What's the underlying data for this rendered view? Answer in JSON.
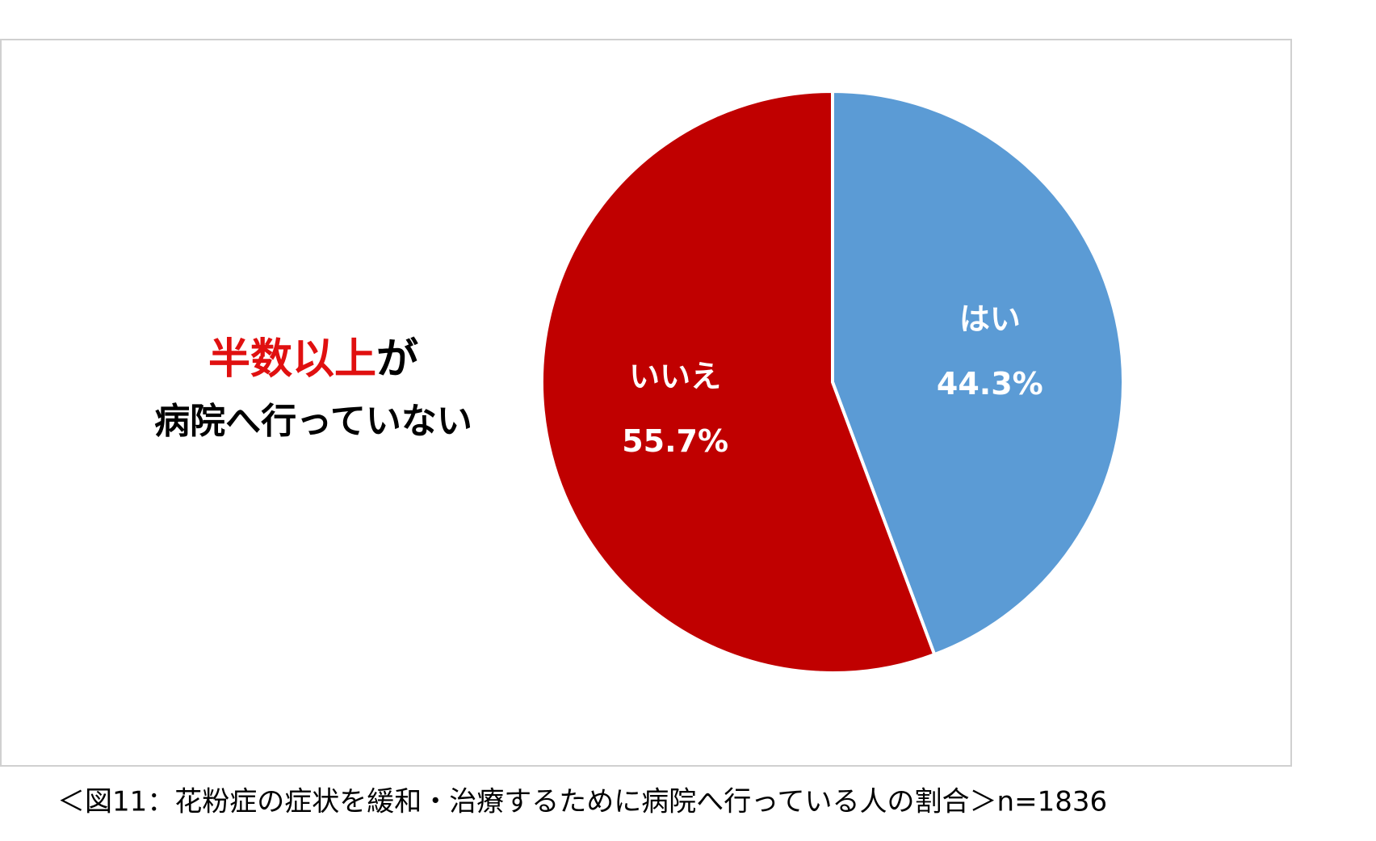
{
  "chart_data": {
    "type": "pie",
    "categories": [
      "はい",
      "いいえ"
    ],
    "values": [
      44.3,
      55.7
    ],
    "value_labels": [
      "44.3%",
      "55.7%"
    ],
    "colors": [
      "#5b9bd5",
      "#c00000"
    ],
    "annotation": {
      "highlight": "半数以上",
      "highlight_rest": "が",
      "line2": "病院へ行っていない"
    },
    "caption": "＜図11：花粉症の症状を緩和・治療するために病院へ行っている人の割合＞n=1836"
  }
}
